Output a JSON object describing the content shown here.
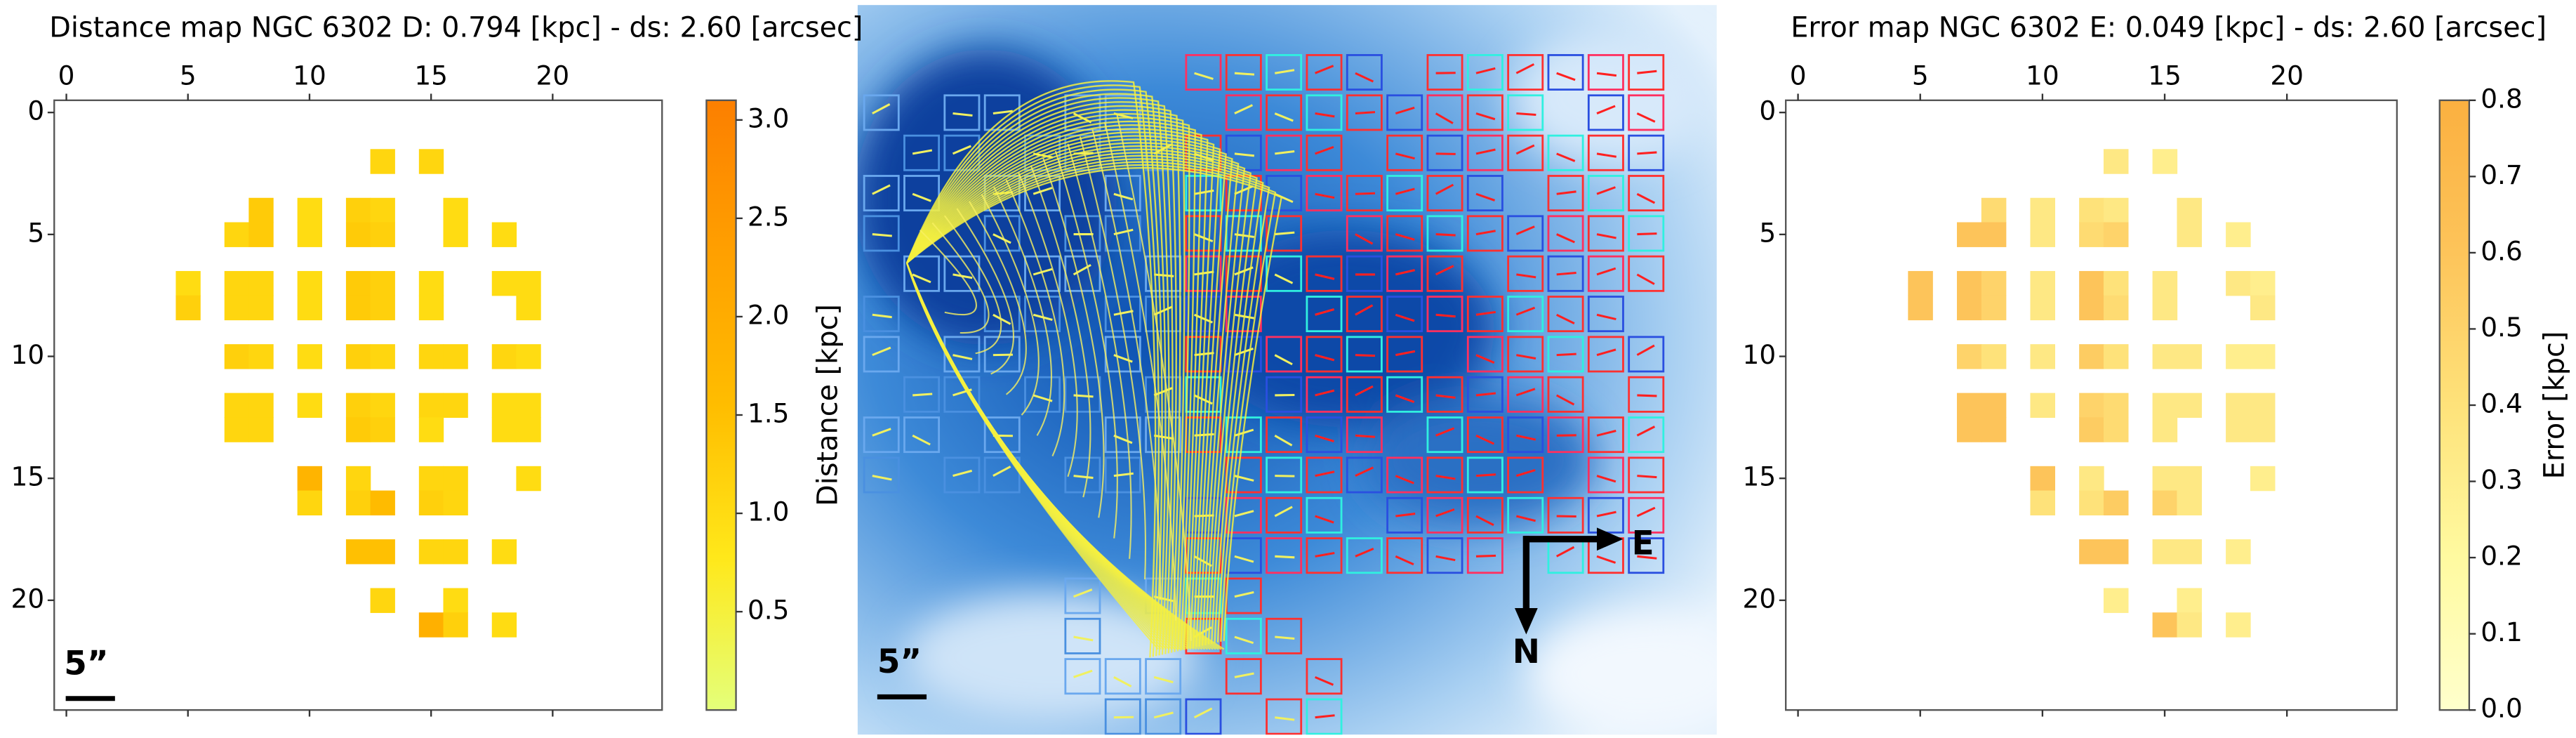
{
  "chart_data": [
    {
      "type": "heatmap",
      "title": "Distance map NGC 6302 D: 0.794 [kpc] - ds: 2.60 [arcsec]",
      "colorbar_label": "Distance [kpc]",
      "scale_label": "5”",
      "xlim": [
        -0.5,
        24.5
      ],
      "ylim": [
        24.5,
        -0.5
      ],
      "xticks": [
        0,
        5,
        10,
        15,
        20
      ],
      "yticks": [
        0,
        5,
        10,
        15,
        20
      ],
      "clim": [
        0,
        3.1
      ],
      "cticks": [
        0.5,
        {
          "value": 1,
          "label": "1.0"
        },
        1.5,
        {
          "value": 2,
          "label": "2.0"
        },
        2.5,
        {
          "value": 3,
          "label": "3.0"
        }
      ],
      "colormap": [
        "#e4ff7a",
        "#ffe81a",
        "#ffbd00",
        "#ffa000",
        "#fc7f00"
      ],
      "x": [
        13,
        15,
        8,
        10,
        12,
        13,
        16,
        7,
        8,
        10,
        12,
        13,
        16,
        18,
        5,
        7,
        8,
        10,
        12,
        13,
        15,
        18,
        19,
        5,
        7,
        8,
        10,
        12,
        13,
        15,
        19,
        7,
        8,
        10,
        12,
        13,
        15,
        16,
        18,
        19,
        7,
        8,
        10,
        12,
        13,
        15,
        16,
        18,
        19,
        7,
        8,
        12,
        13,
        15,
        18,
        19,
        10,
        12,
        15,
        16,
        19,
        10,
        12,
        13,
        15,
        16,
        12,
        13,
        15,
        16,
        18,
        13,
        16,
        15,
        16,
        18
      ],
      "y": [
        2,
        2,
        4,
        4,
        4,
        4,
        4,
        5,
        5,
        5,
        5,
        5,
        5,
        5,
        7,
        7,
        7,
        7,
        7,
        7,
        7,
        7,
        7,
        8,
        8,
        8,
        8,
        8,
        8,
        8,
        8,
        10,
        10,
        10,
        10,
        10,
        10,
        10,
        10,
        10,
        12,
        12,
        12,
        12,
        12,
        12,
        12,
        12,
        12,
        13,
        13,
        13,
        13,
        13,
        13,
        13,
        15,
        15,
        15,
        15,
        15,
        16,
        16,
        16,
        16,
        16,
        18,
        18,
        18,
        18,
        18,
        20,
        20,
        21,
        21,
        21
      ],
      "values": [
        1.1,
        1.1,
        1.3,
        1.0,
        1.2,
        1.1,
        1.0,
        1.1,
        1.3,
        1.0,
        1.3,
        1.2,
        1.0,
        1.0,
        1.0,
        1.1,
        1.1,
        1.0,
        1.3,
        1.2,
        1.0,
        1.0,
        1.0,
        1.2,
        1.1,
        1.1,
        1.0,
        1.3,
        1.2,
        1.0,
        1.0,
        1.2,
        1.1,
        1.0,
        1.2,
        1.1,
        1.1,
        1.1,
        1.1,
        1.0,
        1.1,
        1.1,
        1.0,
        1.2,
        1.1,
        1.1,
        1.1,
        1.0,
        1.0,
        1.1,
        1.1,
        1.3,
        1.2,
        1.0,
        1.0,
        1.0,
        1.8,
        1.1,
        1.1,
        1.1,
        1.0,
        1.1,
        1.2,
        1.6,
        1.2,
        1.1,
        1.5,
        1.5,
        1.1,
        1.1,
        1.0,
        1.1,
        1.0,
        1.9,
        1.2,
        1.0
      ]
    },
    {
      "type": "heatmap",
      "title": "Error map NGC 6302 E: 0.049 [kpc] - ds: 2.60 [arcsec]",
      "colorbar_label": "Error [kpc]",
      "xlim": [
        -0.5,
        24.5
      ],
      "ylim": [
        24.5,
        -0.5
      ],
      "xticks": [
        0,
        5,
        10,
        15,
        20
      ],
      "yticks": [
        0,
        5,
        10,
        15,
        20
      ],
      "clim": [
        0,
        0.8
      ],
      "cticks": [
        {
          "value": 0,
          "label": "0.0"
        },
        0.1,
        0.2,
        0.3,
        0.4,
        0.5,
        0.6,
        0.7,
        0.8
      ],
      "colormap": [
        "#ffffcc",
        "#fffaa0",
        "#fee27a",
        "#fdc45a",
        "#fbb040"
      ],
      "x": [
        13,
        15,
        8,
        10,
        12,
        13,
        16,
        7,
        8,
        10,
        12,
        13,
        16,
        18,
        5,
        7,
        8,
        10,
        12,
        13,
        15,
        18,
        19,
        5,
        7,
        8,
        10,
        12,
        13,
        15,
        19,
        7,
        8,
        10,
        12,
        13,
        15,
        16,
        18,
        19,
        7,
        8,
        10,
        12,
        13,
        15,
        16,
        18,
        19,
        7,
        8,
        12,
        13,
        15,
        18,
        19,
        10,
        12,
        15,
        16,
        19,
        10,
        12,
        13,
        15,
        16,
        12,
        13,
        15,
        16,
        18,
        13,
        16,
        15,
        16,
        18
      ],
      "y": [
        2,
        2,
        4,
        4,
        4,
        4,
        4,
        5,
        5,
        5,
        5,
        5,
        5,
        5,
        7,
        7,
        7,
        7,
        7,
        7,
        7,
        7,
        7,
        8,
        8,
        8,
        8,
        8,
        8,
        8,
        8,
        10,
        10,
        10,
        10,
        10,
        10,
        10,
        10,
        10,
        12,
        12,
        12,
        12,
        12,
        12,
        12,
        12,
        12,
        13,
        13,
        13,
        13,
        13,
        13,
        13,
        15,
        15,
        15,
        15,
        15,
        16,
        16,
        16,
        16,
        16,
        18,
        18,
        18,
        18,
        18,
        20,
        20,
        21,
        21,
        21
      ],
      "values": [
        0.35,
        0.3,
        0.45,
        0.35,
        0.4,
        0.35,
        0.35,
        0.6,
        0.6,
        0.35,
        0.45,
        0.5,
        0.35,
        0.3,
        0.6,
        0.6,
        0.5,
        0.35,
        0.6,
        0.4,
        0.35,
        0.35,
        0.3,
        0.6,
        0.6,
        0.5,
        0.35,
        0.6,
        0.45,
        0.35,
        0.35,
        0.5,
        0.4,
        0.35,
        0.55,
        0.4,
        0.35,
        0.35,
        0.3,
        0.3,
        0.6,
        0.6,
        0.35,
        0.5,
        0.45,
        0.35,
        0.35,
        0.35,
        0.35,
        0.6,
        0.6,
        0.55,
        0.45,
        0.35,
        0.35,
        0.35,
        0.6,
        0.35,
        0.35,
        0.35,
        0.3,
        0.4,
        0.4,
        0.55,
        0.5,
        0.35,
        0.6,
        0.6,
        0.35,
        0.35,
        0.3,
        0.3,
        0.3,
        0.6,
        0.35,
        0.3
      ]
    }
  ],
  "image_panel": {
    "scale_label": "5”",
    "east": "E",
    "north": "N"
  }
}
